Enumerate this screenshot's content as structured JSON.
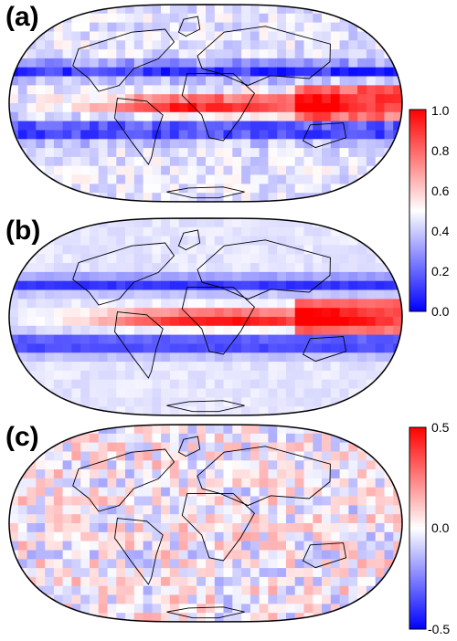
{
  "panels": [
    {
      "label": "(a)",
      "pattern": "itcz-strong"
    },
    {
      "label": "(b)",
      "pattern": "itcz-smooth"
    },
    {
      "label": "(c)",
      "pattern": "difference"
    }
  ],
  "colorbars": [
    {
      "name": "colorbar-main",
      "ticks": [
        "1.0",
        "0.8",
        "0.6",
        "0.4",
        "0.2",
        "0.0"
      ],
      "range": [
        0.0,
        1.0
      ],
      "colors": [
        "#0000ff",
        "#ffffff",
        "#ff0000"
      ]
    },
    {
      "name": "colorbar-diff",
      "ticks": [
        "0.5",
        "0.0",
        "-0.5"
      ],
      "range": [
        -0.5,
        0.5
      ],
      "colors": [
        "#0000ff",
        "#ffffff",
        "#ff0000"
      ]
    }
  ],
  "map": {
    "projection": "Robinson",
    "outline_color": "#000000",
    "coast_color": "#000000"
  }
}
